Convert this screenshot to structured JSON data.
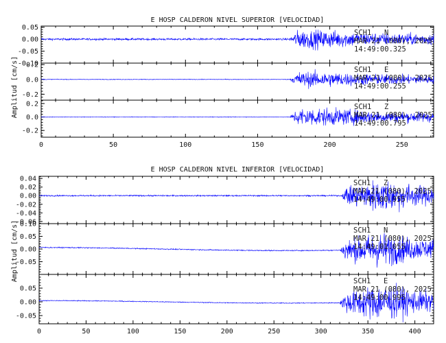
{
  "chart_data": [
    {
      "type": "line",
      "title": "E HOSP CALDERON NIVEL SUPERIOR [VELOCIDAD]",
      "ylabel": "Amplitud [cm/s]",
      "xlim": [
        0,
        272
      ],
      "xticks": [
        0,
        50,
        100,
        150,
        200,
        250
      ],
      "series": [
        {
          "ylim": [
            -0.1,
            0.055
          ],
          "yticks": [
            "0.05",
            "0.00",
            "-0.05",
            "-0.10"
          ],
          "ytick_values": [
            0.05,
            0.0,
            -0.05,
            -0.1
          ],
          "noise_amp": 0.004,
          "event_start": 172,
          "event_peak": 0.048,
          "annotation": [
            "SCH1",
            "N",
            "MAR 21 (080), 2025",
            "14:49:00.325"
          ],
          "color": "#0000ff"
        },
        {
          "ylim": [
            -0.28,
            0.22
          ],
          "yticks": [
            "0.2",
            "0.0",
            "-0.2"
          ],
          "ytick_values": [
            0.2,
            0.0,
            -0.2
          ],
          "noise_amp": 0.004,
          "event_start": 172,
          "event_peak": 0.14,
          "annotation": [
            "SCH1",
            "E",
            "MAR 21 (080), 2025",
            "14:49:00.255"
          ],
          "color": "#0000ff"
        },
        {
          "ylim": [
            -0.3,
            0.25
          ],
          "yticks": [
            "0.2",
            "0.0",
            "-0.2"
          ],
          "ytick_values": [
            0.2,
            0.0,
            -0.2
          ],
          "noise_amp": 0.004,
          "event_start": 172,
          "event_peak": 0.18,
          "annotation": [
            "SCH1",
            "Z",
            "MAR 21 (080), 2025",
            "14:49:00.795"
          ],
          "color": "#0000ff"
        }
      ]
    },
    {
      "type": "line",
      "title": "E HOSP CALDERON NIVEL INFERIOR [VELOCIDAD]",
      "ylabel": "Amplitud [cm/s]",
      "xlim": [
        0,
        420
      ],
      "xticks": [
        0,
        50,
        100,
        150,
        200,
        250,
        300,
        350,
        400
      ],
      "series": [
        {
          "ylim": [
            -0.065,
            0.045
          ],
          "yticks": [
            "0.04",
            "0.02",
            "0.00",
            "-0.02",
            "-0.04",
            "-0.06"
          ],
          "ytick_values": [
            0.04,
            0.02,
            0.0,
            -0.02,
            -0.04,
            -0.06
          ],
          "noise_amp": 0.0015,
          "event_start": 322,
          "event_peak": 0.05,
          "annotation": [
            "SCH1",
            "Z",
            "MAR 21 (080), 2025",
            "14:49:00.955"
          ],
          "color": "#0000ff"
        },
        {
          "ylim": [
            -0.1,
            0.1
          ],
          "yticks": [
            "0.10",
            "0.05",
            "0.00",
            "-0.05"
          ],
          "ytick_values": [
            0.1,
            0.05,
            0.0,
            -0.05
          ],
          "noise_amp": 0.002,
          "event_start": 320,
          "event_peak": 0.09,
          "annotation": [
            "SCH1",
            "N",
            "MAR 21 (080), 2025",
            "14:49:01.055"
          ],
          "color": "#0000ff"
        },
        {
          "ylim": [
            -0.08,
            0.1
          ],
          "yticks": [
            "0.05",
            "0.00",
            "-0.05"
          ],
          "ytick_values": [
            0.05,
            0.0,
            -0.05
          ],
          "noise_amp": 0.0015,
          "event_start": 320,
          "event_peak": 0.09,
          "annotation": [
            "SCH1",
            "E",
            "MAR 21 (080), 2025",
            "14:49:00.995"
          ],
          "color": "#0000ff"
        }
      ]
    }
  ]
}
